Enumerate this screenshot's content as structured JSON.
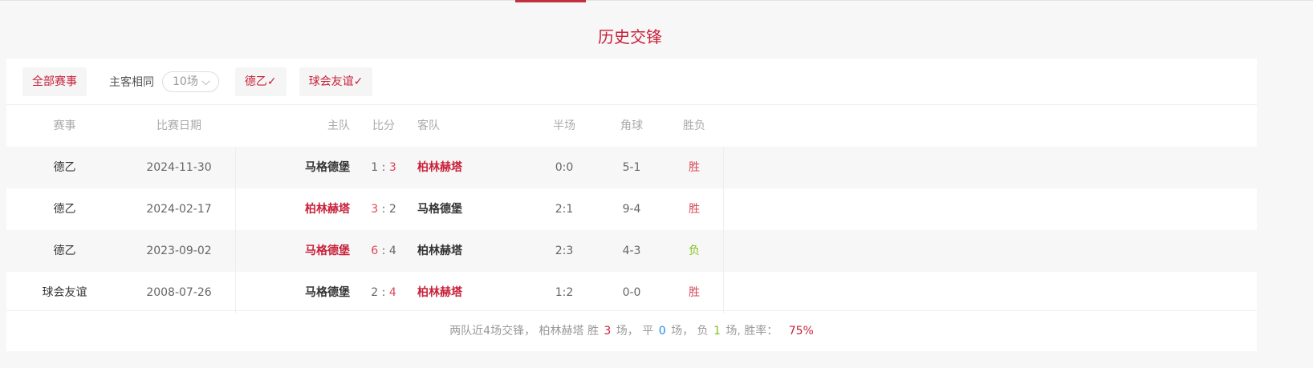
{
  "title": "历史交锋",
  "filters": {
    "all": "全部赛事",
    "same_home_away": "主客相同",
    "count": "10场",
    "league": "德乙",
    "friendly": "球会友谊"
  },
  "columns": [
    "赛事",
    "比赛日期",
    "主队",
    "比分",
    "客队",
    "半场",
    "角球",
    "胜负"
  ],
  "rows": [
    {
      "comp": "德乙",
      "date": "2024-11-30",
      "home": "马格德堡",
      "hs": "1",
      "as": "3",
      "away": "柏林赫塔",
      "half": "0:0",
      "corner": "5-1",
      "result": "胜",
      "winner": "away"
    },
    {
      "comp": "德乙",
      "date": "2024-02-17",
      "home": "柏林赫塔",
      "hs": "3",
      "as": "2",
      "away": "马格德堡",
      "half": "2:1",
      "corner": "9-4",
      "result": "胜",
      "winner": "home"
    },
    {
      "comp": "德乙",
      "date": "2023-09-02",
      "home": "马格德堡",
      "hs": "6",
      "as": "4",
      "away": "柏林赫塔",
      "half": "2:3",
      "corner": "4-3",
      "result": "负",
      "winner": "home"
    },
    {
      "comp": "球会友谊",
      "date": "2008-07-26",
      "home": "马格德堡",
      "hs": "2",
      "as": "4",
      "away": "柏林赫塔",
      "half": "1:2",
      "corner": "0-0",
      "result": "胜",
      "winner": "away"
    }
  ],
  "summary": {
    "p1": "两队近4场交锋， 柏林赫塔 胜",
    "wins": "3",
    "p2": "场， 平",
    "draws": "0",
    "p3": "场， 负",
    "losses": "1",
    "p4": "场, 胜率：",
    "rate": "75%"
  },
  "colors": {
    "accent": "#c8213a",
    "win": "#d9485a",
    "lose": "#7ec11f",
    "draw": "#1e8ae6"
  }
}
